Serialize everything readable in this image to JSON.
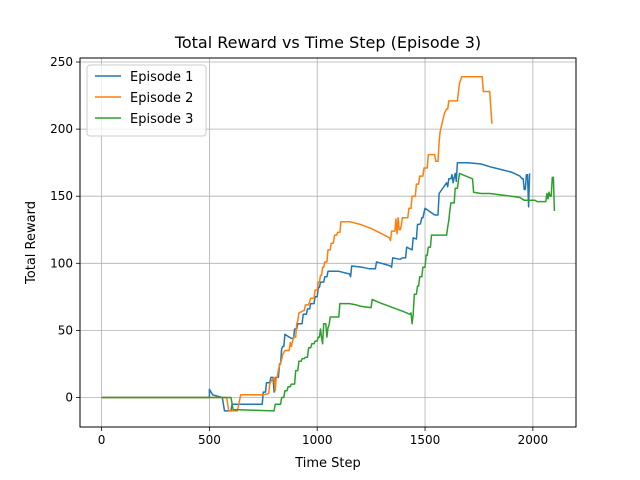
{
  "chart_data": {
    "type": "line",
    "title": "Total Reward vs Time Step (Episode 3)",
    "xlabel": "Time Step",
    "ylabel": "Total Reward",
    "xlim": [
      -100,
      2200
    ],
    "ylim": [
      -22,
      253
    ],
    "xticks": [
      0,
      500,
      1000,
      1500,
      2000
    ],
    "yticks": [
      0,
      50,
      100,
      150,
      200,
      250
    ],
    "grid": true,
    "legend": "top-left",
    "series": [
      {
        "name": "Episode 1",
        "color": "#1f77b4",
        "points": [
          [
            0,
            0
          ],
          [
            250,
            0
          ],
          [
            450,
            0
          ],
          [
            500,
            0
          ],
          [
            500,
            6
          ],
          [
            515,
            2
          ],
          [
            560,
            0
          ],
          [
            570,
            -10
          ],
          [
            600,
            -10
          ],
          [
            605,
            -5
          ],
          [
            660,
            -5
          ],
          [
            700,
            -5
          ],
          [
            745,
            -5
          ],
          [
            750,
            4
          ],
          [
            760,
            4
          ],
          [
            765,
            11
          ],
          [
            780,
            11
          ],
          [
            785,
            15
          ],
          [
            795,
            15
          ],
          [
            800,
            4
          ],
          [
            805,
            15
          ],
          [
            820,
            15
          ],
          [
            825,
            25
          ],
          [
            830,
            25
          ],
          [
            835,
            36
          ],
          [
            840,
            38
          ],
          [
            845,
            38
          ],
          [
            850,
            47
          ],
          [
            880,
            44
          ],
          [
            890,
            44
          ],
          [
            895,
            51
          ],
          [
            905,
            51
          ],
          [
            910,
            55
          ],
          [
            930,
            55
          ],
          [
            935,
            62
          ],
          [
            950,
            62
          ],
          [
            955,
            66
          ],
          [
            965,
            66
          ],
          [
            970,
            70
          ],
          [
            985,
            70
          ],
          [
            990,
            75
          ],
          [
            1000,
            75
          ],
          [
            1005,
            82
          ],
          [
            1010,
            82
          ],
          [
            1015,
            86
          ],
          [
            1030,
            86
          ],
          [
            1035,
            90
          ],
          [
            1045,
            90
          ],
          [
            1050,
            94
          ],
          [
            1100,
            94
          ],
          [
            1150,
            92
          ],
          [
            1155,
            90
          ],
          [
            1160,
            98
          ],
          [
            1210,
            97
          ],
          [
            1240,
            96
          ],
          [
            1270,
            96
          ],
          [
            1275,
            101
          ],
          [
            1320,
            99
          ],
          [
            1340,
            98
          ],
          [
            1345,
            97
          ],
          [
            1350,
            104
          ],
          [
            1385,
            103
          ],
          [
            1395,
            104
          ],
          [
            1410,
            104
          ],
          [
            1415,
            112
          ],
          [
            1440,
            110
          ],
          [
            1445,
            119
          ],
          [
            1460,
            118
          ],
          [
            1465,
            129
          ],
          [
            1475,
            129
          ],
          [
            1480,
            130
          ],
          [
            1485,
            134
          ],
          [
            1490,
            134
          ],
          [
            1500,
            141
          ],
          [
            1545,
            136
          ],
          [
            1560,
            136
          ],
          [
            1565,
            152
          ],
          [
            1600,
            160
          ],
          [
            1605,
            157
          ],
          [
            1610,
            163
          ],
          [
            1620,
            163
          ],
          [
            1625,
            166
          ],
          [
            1630,
            160
          ],
          [
            1635,
            164
          ],
          [
            1640,
            167
          ],
          [
            1645,
            161
          ],
          [
            1650,
            175
          ],
          [
            1700,
            175
          ],
          [
            1760,
            174
          ],
          [
            1800,
            172
          ],
          [
            1850,
            170
          ],
          [
            1900,
            168
          ],
          [
            1940,
            165
          ],
          [
            1950,
            163
          ],
          [
            1955,
            163
          ],
          [
            1960,
            155
          ],
          [
            1965,
            155
          ],
          [
            1970,
            166
          ],
          [
            1975,
            166
          ],
          [
            1980,
            142
          ],
          [
            1985,
            167
          ]
        ]
      },
      {
        "name": "Episode 2",
        "color": "#ff7f0e",
        "points": [
          [
            0,
            0
          ],
          [
            300,
            0
          ],
          [
            550,
            0
          ],
          [
            580,
            0
          ],
          [
            590,
            -10
          ],
          [
            620,
            -10
          ],
          [
            630,
            -10
          ],
          [
            645,
            2
          ],
          [
            730,
            2
          ],
          [
            750,
            2
          ],
          [
            775,
            3
          ],
          [
            780,
            10
          ],
          [
            785,
            12
          ],
          [
            795,
            14
          ],
          [
            800,
            14
          ],
          [
            805,
            5
          ],
          [
            810,
            15
          ],
          [
            815,
            15
          ],
          [
            820,
            21
          ],
          [
            830,
            26
          ],
          [
            835,
            28
          ],
          [
            840,
            32
          ],
          [
            850,
            35
          ],
          [
            870,
            35
          ],
          [
            875,
            41
          ],
          [
            880,
            38
          ],
          [
            890,
            45
          ],
          [
            900,
            45
          ],
          [
            905,
            55
          ],
          [
            910,
            57
          ],
          [
            915,
            63
          ],
          [
            940,
            65
          ],
          [
            945,
            69
          ],
          [
            960,
            69
          ],
          [
            970,
            74
          ],
          [
            985,
            74
          ],
          [
            990,
            80
          ],
          [
            1000,
            80
          ],
          [
            1005,
            86
          ],
          [
            1010,
            86
          ],
          [
            1015,
            91
          ],
          [
            1020,
            91
          ],
          [
            1025,
            97
          ],
          [
            1030,
            97
          ],
          [
            1035,
            101
          ],
          [
            1045,
            101
          ],
          [
            1050,
            110
          ],
          [
            1060,
            110
          ],
          [
            1065,
            115
          ],
          [
            1075,
            115
          ],
          [
            1080,
            121
          ],
          [
            1090,
            121
          ],
          [
            1095,
            123
          ],
          [
            1105,
            123
          ],
          [
            1110,
            131
          ],
          [
            1150,
            131
          ],
          [
            1200,
            129
          ],
          [
            1250,
            126
          ],
          [
            1300,
            122
          ],
          [
            1335,
            119
          ],
          [
            1340,
            117
          ],
          [
            1345,
            124
          ],
          [
            1360,
            124
          ],
          [
            1365,
            133
          ],
          [
            1370,
            122
          ],
          [
            1375,
            134
          ],
          [
            1380,
            125
          ],
          [
            1385,
            125
          ],
          [
            1390,
            128
          ],
          [
            1395,
            134
          ],
          [
            1420,
            134
          ],
          [
            1425,
            141
          ],
          [
            1435,
            141
          ],
          [
            1440,
            150
          ],
          [
            1455,
            150
          ],
          [
            1460,
            159
          ],
          [
            1470,
            159
          ],
          [
            1475,
            165
          ],
          [
            1490,
            165
          ],
          [
            1495,
            171
          ],
          [
            1510,
            171
          ],
          [
            1515,
            181
          ],
          [
            1545,
            181
          ],
          [
            1550,
            176
          ],
          [
            1560,
            176
          ],
          [
            1565,
            190
          ],
          [
            1570,
            198
          ],
          [
            1580,
            205
          ],
          [
            1590,
            212
          ],
          [
            1600,
            215
          ],
          [
            1605,
            215
          ],
          [
            1610,
            221
          ],
          [
            1650,
            221
          ],
          [
            1655,
            228
          ],
          [
            1660,
            234
          ],
          [
            1670,
            239
          ],
          [
            1750,
            239
          ],
          [
            1765,
            239
          ],
          [
            1770,
            228
          ],
          [
            1800,
            228
          ],
          [
            1805,
            216
          ],
          [
            1810,
            204
          ]
        ]
      },
      {
        "name": "Episode 3",
        "color": "#2ca02c",
        "points": [
          [
            0,
            0
          ],
          [
            250,
            0
          ],
          [
            500,
            0
          ],
          [
            600,
            0
          ],
          [
            610,
            -9
          ],
          [
            800,
            -10
          ],
          [
            805,
            -5
          ],
          [
            830,
            -5
          ],
          [
            835,
            0
          ],
          [
            845,
            0
          ],
          [
            850,
            5
          ],
          [
            860,
            5
          ],
          [
            865,
            8
          ],
          [
            875,
            8
          ],
          [
            880,
            10
          ],
          [
            895,
            10
          ],
          [
            900,
            20
          ],
          [
            910,
            20
          ],
          [
            915,
            27
          ],
          [
            925,
            27
          ],
          [
            930,
            29
          ],
          [
            940,
            29
          ],
          [
            945,
            30
          ],
          [
            955,
            30
          ],
          [
            960,
            37
          ],
          [
            970,
            37
          ],
          [
            975,
            40
          ],
          [
            985,
            40
          ],
          [
            990,
            42
          ],
          [
            1000,
            42
          ],
          [
            1005,
            45
          ],
          [
            1010,
            45
          ],
          [
            1015,
            51
          ],
          [
            1020,
            45
          ],
          [
            1025,
            40
          ],
          [
            1030,
            55
          ],
          [
            1040,
            55
          ],
          [
            1045,
            45
          ],
          [
            1050,
            52
          ],
          [
            1055,
            54
          ],
          [
            1060,
            60
          ],
          [
            1100,
            60
          ],
          [
            1105,
            70
          ],
          [
            1150,
            70
          ],
          [
            1180,
            69
          ],
          [
            1200,
            68
          ],
          [
            1250,
            67
          ],
          [
            1255,
            73
          ],
          [
            1300,
            70
          ],
          [
            1350,
            67
          ],
          [
            1400,
            64
          ],
          [
            1430,
            62
          ],
          [
            1435,
            63
          ],
          [
            1440,
            55
          ],
          [
            1445,
            62
          ],
          [
            1450,
            77
          ],
          [
            1460,
            77
          ],
          [
            1465,
            83
          ],
          [
            1470,
            83
          ],
          [
            1475,
            90
          ],
          [
            1485,
            90
          ],
          [
            1490,
            97
          ],
          [
            1500,
            97
          ],
          [
            1505,
            106
          ],
          [
            1510,
            106
          ],
          [
            1515,
            112
          ],
          [
            1525,
            112
          ],
          [
            1530,
            121
          ],
          [
            1550,
            121
          ],
          [
            1600,
            121
          ],
          [
            1605,
            127
          ],
          [
            1610,
            132
          ],
          [
            1615,
            139
          ],
          [
            1620,
            145
          ],
          [
            1635,
            145
          ],
          [
            1640,
            156
          ],
          [
            1650,
            156
          ],
          [
            1655,
            162
          ],
          [
            1660,
            167
          ],
          [
            1720,
            163
          ],
          [
            1725,
            153
          ],
          [
            1760,
            152
          ],
          [
            1800,
            152
          ],
          [
            1850,
            151
          ],
          [
            1900,
            150
          ],
          [
            1940,
            149
          ],
          [
            1950,
            148
          ],
          [
            1960,
            147
          ],
          [
            2000,
            147
          ],
          [
            2010,
            147
          ],
          [
            2020,
            146
          ],
          [
            2050,
            146
          ],
          [
            2060,
            146
          ],
          [
            2065,
            152
          ],
          [
            2070,
            148
          ],
          [
            2075,
            153
          ],
          [
            2080,
            150
          ],
          [
            2085,
            150
          ],
          [
            2090,
            164
          ],
          [
            2095,
            164
          ],
          [
            2100,
            139
          ]
        ]
      }
    ]
  }
}
